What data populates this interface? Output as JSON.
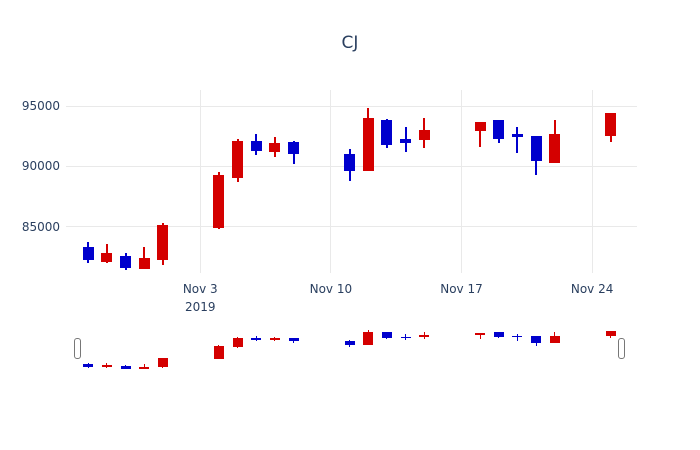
{
  "title": "CJ",
  "colors": {
    "background": "#ffffff",
    "grid": "#e9e9e9",
    "axis_text": "#2a3f5f",
    "increasing": "#d40000",
    "decreasing": "#0000cd"
  },
  "chart_data": {
    "type": "candlestick",
    "title": "CJ",
    "legend": "none",
    "grid": "on",
    "y_axis": {
      "ticks": [
        95000,
        90000,
        85000
      ],
      "range": [
        81200,
        96300
      ]
    },
    "x_axis": {
      "ticks": [
        {
          "label": "Nov 3",
          "sublabel": "2019",
          "day": 6
        },
        {
          "label": "Nov 10",
          "sublabel": "",
          "day": 13
        },
        {
          "label": "Nov 17",
          "sublabel": "",
          "day": 20
        },
        {
          "label": "Nov 24",
          "sublabel": "",
          "day": 27
        }
      ]
    },
    "candles": [
      {
        "date": "2019-10-28",
        "day": 0,
        "open": 83300,
        "high": 83700,
        "low": 82000,
        "close": 82200
      },
      {
        "date": "2019-10-29",
        "day": 1,
        "open": 82100,
        "high": 83600,
        "low": 82000,
        "close": 82800
      },
      {
        "date": "2019-10-30",
        "day": 2,
        "open": 82600,
        "high": 82800,
        "low": 81400,
        "close": 81600
      },
      {
        "date": "2019-10-31",
        "day": 3,
        "open": 81500,
        "high": 83300,
        "low": 81500,
        "close": 82400
      },
      {
        "date": "2019-11-01",
        "day": 4,
        "open": 82200,
        "high": 85300,
        "low": 81800,
        "close": 85100
      },
      {
        "date": "2019-11-04",
        "day": 7,
        "open": 84900,
        "high": 89500,
        "low": 84800,
        "close": 89300
      },
      {
        "date": "2019-11-05",
        "day": 8,
        "open": 89000,
        "high": 92300,
        "low": 88700,
        "close": 92100
      },
      {
        "date": "2019-11-06",
        "day": 9,
        "open": 92100,
        "high": 92700,
        "low": 90900,
        "close": 91300
      },
      {
        "date": "2019-11-07",
        "day": 10,
        "open": 91200,
        "high": 92400,
        "low": 90800,
        "close": 91900
      },
      {
        "date": "2019-11-08",
        "day": 11,
        "open": 92000,
        "high": 92100,
        "low": 90200,
        "close": 91000
      },
      {
        "date": "2019-11-11",
        "day": 14,
        "open": 91000,
        "high": 91400,
        "low": 88800,
        "close": 89600
      },
      {
        "date": "2019-11-12",
        "day": 15,
        "open": 89600,
        "high": 94800,
        "low": 89600,
        "close": 94000
      },
      {
        "date": "2019-11-13",
        "day": 16,
        "open": 93800,
        "high": 93900,
        "low": 91500,
        "close": 91800
      },
      {
        "date": "2019-11-14",
        "day": 17,
        "open": 92300,
        "high": 93300,
        "low": 91200,
        "close": 91900
      },
      {
        "date": "2019-11-15",
        "day": 18,
        "open": 92200,
        "high": 94000,
        "low": 91500,
        "close": 93000
      },
      {
        "date": "2019-11-18",
        "day": 21,
        "open": 92900,
        "high": 93700,
        "low": 91600,
        "close": 93700
      },
      {
        "date": "2019-11-19",
        "day": 22,
        "open": 93800,
        "high": 93800,
        "low": 91900,
        "close": 92300
      },
      {
        "date": "2019-11-20",
        "day": 23,
        "open": 92700,
        "high": 93300,
        "low": 91100,
        "close": 92400
      },
      {
        "date": "2019-11-21",
        "day": 24,
        "open": 92500,
        "high": 92500,
        "low": 89300,
        "close": 90400
      },
      {
        "date": "2019-11-22",
        "day": 25,
        "open": 90300,
        "high": 93800,
        "low": 90300,
        "close": 92700
      },
      {
        "date": "2019-11-25",
        "day": 28,
        "open": 92500,
        "high": 94400,
        "low": 92000,
        "close": 94400
      }
    ],
    "rangeslider": {
      "visible": true,
      "selected_start_day": -0.6,
      "selected_end_day": 28.6,
      "data_low": 81400,
      "data_high": 94800
    }
  }
}
